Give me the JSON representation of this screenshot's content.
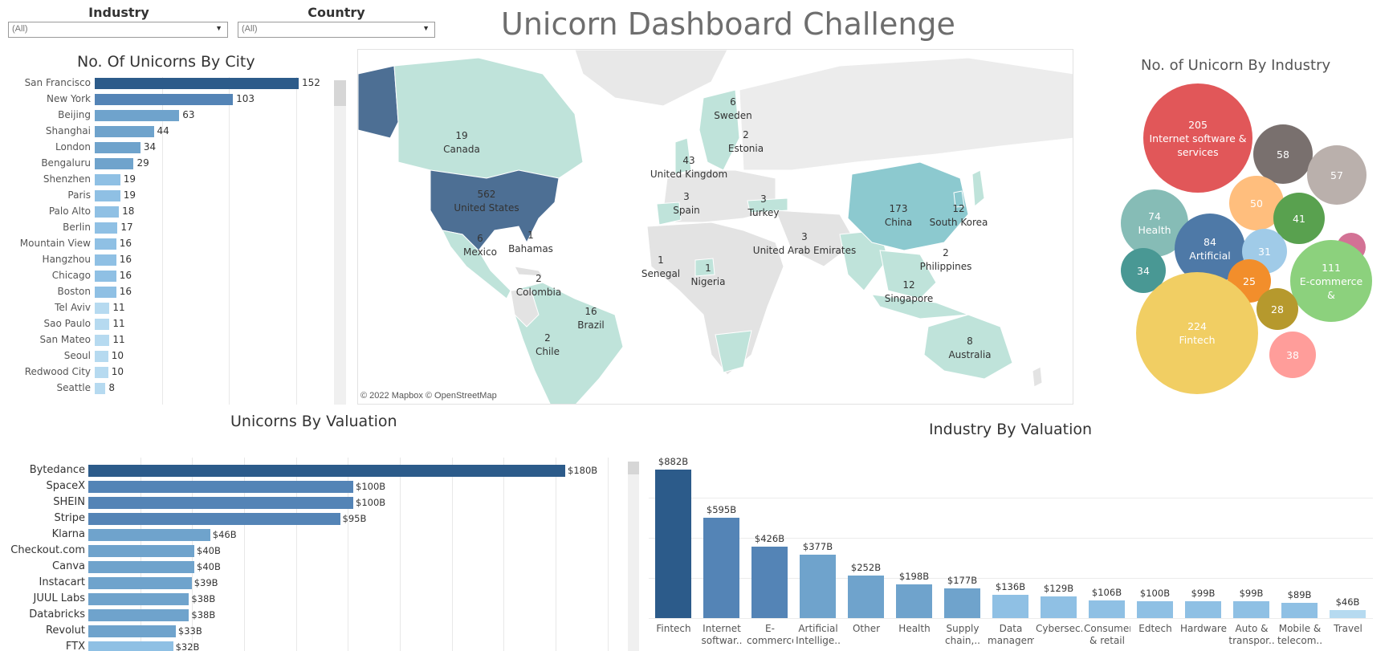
{
  "dashboard": {
    "title": "Unicorn Dashboard Challenge"
  },
  "filters": {
    "industry": {
      "label": "Industry",
      "value": "(All)"
    },
    "country": {
      "label": "Country",
      "value": "(All)"
    }
  },
  "colors": {
    "dark_blue": "#2c5b8a",
    "mid_blue": "#5484b6",
    "light_blue": "#8fc0e4",
    "palest_blue": "#b6daf0",
    "map_land_default": "#e6e6e6",
    "map_teal_light": "#bfe3da",
    "map_teal_mid": "#8cc9cf",
    "map_usa": "#4d6f94"
  },
  "city_chart": {
    "title": "No. Of Unicorns By City",
    "chart_data": {
      "type": "bar",
      "orientation": "horizontal",
      "categories": [
        "San Francisco",
        "New York",
        "Beijing",
        "Shanghai",
        "London",
        "Bengaluru",
        "Shenzhen",
        "Paris",
        "Palo Alto",
        "Berlin",
        "Mountain View",
        "Hangzhou",
        "Chicago",
        "Boston",
        "Tel Aviv",
        "Sao Paulo",
        "San Mateo",
        "Seoul",
        "Redwood City",
        "Seattle"
      ],
      "values": [
        152,
        103,
        63,
        44,
        34,
        29,
        19,
        19,
        18,
        17,
        16,
        16,
        16,
        16,
        11,
        11,
        11,
        10,
        10,
        8
      ],
      "labels": [
        "152",
        "103",
        "63",
        "44",
        "34",
        "29",
        "19",
        "19",
        "18",
        "17",
        "16",
        "16",
        "16",
        "16",
        "11",
        "11",
        "11",
        "10",
        "10",
        "8"
      ],
      "xlim": [
        0,
        180
      ],
      "grid": true
    }
  },
  "map": {
    "credit": "© 2022 Mapbox  © OpenStreetMap",
    "countries": [
      {
        "name": "Canada",
        "value": "19"
      },
      {
        "name": "United States",
        "value": "562"
      },
      {
        "name": "Mexico",
        "value": "6"
      },
      {
        "name": "Bahamas",
        "value": "1"
      },
      {
        "name": "Colombia",
        "value": "2"
      },
      {
        "name": "Brazil",
        "value": "16"
      },
      {
        "name": "Chile",
        "value": "2"
      },
      {
        "name": "Sweden",
        "value": "6"
      },
      {
        "name": "Estonia",
        "value": "2"
      },
      {
        "name": "United Kingdom",
        "value": "43"
      },
      {
        "name": "Spain",
        "value": "3"
      },
      {
        "name": "Turkey",
        "value": "3"
      },
      {
        "name": "Senegal",
        "value": "1"
      },
      {
        "name": "Nigeria",
        "value": "1"
      },
      {
        "name": "United Arab Emirates",
        "value": "3"
      },
      {
        "name": "China",
        "value": "173"
      },
      {
        "name": "South Korea",
        "value": "12"
      },
      {
        "name": "Philippines",
        "value": "2"
      },
      {
        "name": "Singapore",
        "value": "12"
      },
      {
        "name": "Australia",
        "value": "8"
      }
    ]
  },
  "industry_bubbles": {
    "title": "No. of Unicorn By Industry",
    "chart_data": {
      "type": "bubble",
      "items": [
        {
          "industry": "Internet software & services",
          "value": 205,
          "label": "Internet software & services",
          "color": "#e15759"
        },
        {
          "industry": "",
          "value": 58,
          "label": "",
          "color": "#79706e"
        },
        {
          "industry": "",
          "value": 57,
          "label": "",
          "color": "#bab0ac"
        },
        {
          "industry": "",
          "value": 50,
          "label": "",
          "color": "#ffbe7d"
        },
        {
          "industry": "",
          "value": 41,
          "label": "",
          "color": "#59a14f"
        },
        {
          "industry": "",
          "value": null,
          "label": "",
          "color": "#d37295"
        },
        {
          "industry": "Health",
          "value": 74,
          "label": "Health",
          "color": "#86bcb6"
        },
        {
          "industry": "Artificial",
          "value": 84,
          "label": "Artificial",
          "color": "#4e79a7"
        },
        {
          "industry": "",
          "value": 31,
          "label": "",
          "color": "#a0cbe8"
        },
        {
          "industry": "E-commerce &",
          "value": 111,
          "label": "E-commerce &",
          "color": "#8cd17d"
        },
        {
          "industry": "",
          "value": 34,
          "label": "",
          "color": "#499894"
        },
        {
          "industry": "",
          "value": 25,
          "label": "",
          "color": "#f28e2b"
        },
        {
          "industry": "Fintech",
          "value": 224,
          "label": "Fintech",
          "color": "#f1ce63"
        },
        {
          "industry": "",
          "value": 28,
          "label": "",
          "color": "#b6992d"
        },
        {
          "industry": "",
          "value": 38,
          "label": "",
          "color": "#ff9d9a"
        }
      ]
    }
  },
  "valuation_chart": {
    "title": "Unicorns By Valuation",
    "chart_data": {
      "type": "bar",
      "orientation": "horizontal",
      "categories": [
        "Bytedance",
        "SpaceX",
        "SHEIN",
        "Stripe",
        "Klarna",
        "Checkout.com",
        "Canva",
        "Instacart",
        "JUUL Labs",
        "Databricks",
        "Revolut",
        "FTX"
      ],
      "values": [
        180,
        100,
        100,
        95,
        46,
        40,
        40,
        39,
        38,
        38,
        33,
        32
      ],
      "labels": [
        "$180B",
        "$100B",
        "$100B",
        "$95B",
        "$46B",
        "$40B",
        "$40B",
        "$39B",
        "$38B",
        "$38B",
        "$33B",
        "$32B"
      ],
      "xlim": [
        0,
        200
      ],
      "grid": true
    }
  },
  "industry_valuation": {
    "title": "Industry By Valuation",
    "chart_data": {
      "type": "bar",
      "orientation": "vertical",
      "categories": [
        "Fintech",
        "Internet softwar..",
        "E-commerce..",
        "Artificial Intellige..",
        "Other",
        "Health",
        "Supply chain,..",
        "Data manageme..",
        "Cybersec..",
        "Consumer & retail",
        "Edtech",
        "Hardware",
        "Auto & transpor..",
        "Mobile & telecom..",
        "Travel"
      ],
      "values": [
        882,
        595,
        426,
        377,
        252,
        198,
        177,
        136,
        129,
        106,
        100,
        99,
        99,
        89,
        46
      ],
      "labels": [
        "$882B",
        "$595B",
        "$426B",
        "$377B",
        "$252B",
        "$198B",
        "$177B",
        "$136B",
        "$129B",
        "$106B",
        "$100B",
        "$99B",
        "$99B",
        "$89B",
        "$46B"
      ],
      "ylim": [
        0,
        900
      ],
      "grid": true
    }
  }
}
